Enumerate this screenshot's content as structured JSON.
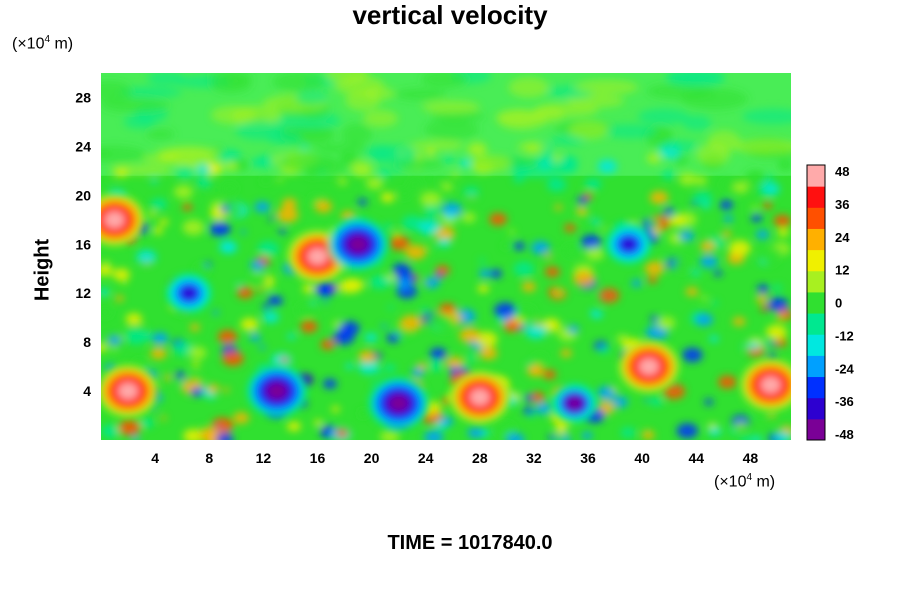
{
  "chart_data": {
    "type": "heatmap",
    "title": "vertical velocity",
    "ylabel": "Height",
    "xlabel": "",
    "x_unit_prefix": "(×10",
    "x_unit_exp": "4",
    "x_unit_suffix": " m)",
    "y_unit_prefix": "(×10",
    "y_unit_exp": "4",
    "y_unit_suffix": " m)",
    "xlim": [
      0,
      51
    ],
    "ylim": [
      0,
      30
    ],
    "x_ticks": [
      "4",
      "8",
      "12",
      "16",
      "20",
      "24",
      "28",
      "32",
      "36",
      "40",
      "44",
      "48"
    ],
    "y_ticks": [
      "4",
      "8",
      "12",
      "16",
      "20",
      "24",
      "28"
    ],
    "colorbar": {
      "min": -48,
      "max": 48,
      "tick_labels": [
        "48",
        "36",
        "24",
        "12",
        "0",
        "-12",
        "-24",
        "-36",
        "-48"
      ],
      "colors": [
        "#7a0096",
        "#2d00d0",
        "#0030ff",
        "#00a0ff",
        "#00e8e0",
        "#00e890",
        "#30e030",
        "#a8f020",
        "#f0f000",
        "#ffb000",
        "#ff5000",
        "#ff1010",
        "#ffaaaa"
      ]
    },
    "features": [
      {
        "kind": "updraft",
        "x": 2,
        "y": 4,
        "w_peak": 48
      },
      {
        "kind": "updraft",
        "x": 28,
        "y": 3.5,
        "w_peak": 48
      },
      {
        "kind": "updraft",
        "x": 40.5,
        "y": 6,
        "w_peak": 48
      },
      {
        "kind": "updraft",
        "x": 49.5,
        "y": 4.5,
        "w_peak": 48
      },
      {
        "kind": "updraft",
        "x": 16,
        "y": 15,
        "w_peak": 48
      },
      {
        "kind": "updraft",
        "x": 1,
        "y": 18,
        "w_peak": 48
      },
      {
        "kind": "downdraft",
        "x": 13,
        "y": 4,
        "w_peak": -48
      },
      {
        "kind": "downdraft",
        "x": 22,
        "y": 3,
        "w_peak": -48
      },
      {
        "kind": "downdraft",
        "x": 19,
        "y": 16,
        "w_peak": -48
      },
      {
        "kind": "downdraft",
        "x": 39,
        "y": 16,
        "w_peak": -40
      },
      {
        "kind": "downdraft",
        "x": 35,
        "y": 3,
        "w_peak": -44
      },
      {
        "kind": "downdraft",
        "x": 6.5,
        "y": 12,
        "w_peak": -40
      }
    ]
  },
  "time_label": "TIME = 1017840.0"
}
